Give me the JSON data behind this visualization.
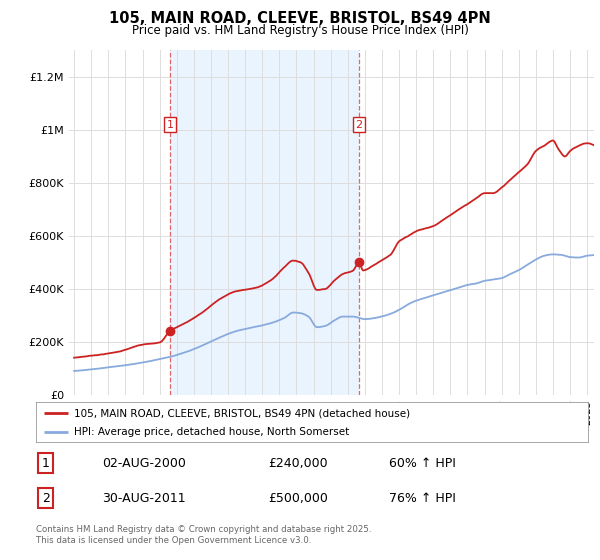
{
  "title": "105, MAIN ROAD, CLEEVE, BRISTOL, BS49 4PN",
  "subtitle": "Price paid vs. HM Land Registry's House Price Index (HPI)",
  "legend_line1": "105, MAIN ROAD, CLEEVE, BRISTOL, BS49 4PN (detached house)",
  "legend_line2": "HPI: Average price, detached house, North Somerset",
  "purchase1_date": "02-AUG-2000",
  "purchase1_price": "£240,000",
  "purchase1_hpi": "60% ↑ HPI",
  "purchase1_year": 2000.6,
  "purchase1_value": 240000,
  "purchase2_date": "30-AUG-2011",
  "purchase2_price": "£500,000",
  "purchase2_hpi": "76% ↑ HPI",
  "purchase2_year": 2011.66,
  "purchase2_value": 500000,
  "red_color": "#cc2222",
  "blue_color": "#88aadd",
  "shade_color": "#ddeeff",
  "dashed_color": "#dd4444",
  "background_color": "#ffffff",
  "grid_color": "#dddddd",
  "footer_text": "Contains HM Land Registry data © Crown copyright and database right 2025.\nThis data is licensed under the Open Government Licence v3.0.",
  "ylim": [
    0,
    1300000
  ],
  "yticks": [
    0,
    200000,
    400000,
    600000,
    800000,
    1000000,
    1200000
  ],
  "ytick_labels": [
    "£0",
    "£200K",
    "£400K",
    "£600K",
    "£800K",
    "£1M",
    "£1.2M"
  ],
  "xmin": 1994.7,
  "xmax": 2025.4
}
